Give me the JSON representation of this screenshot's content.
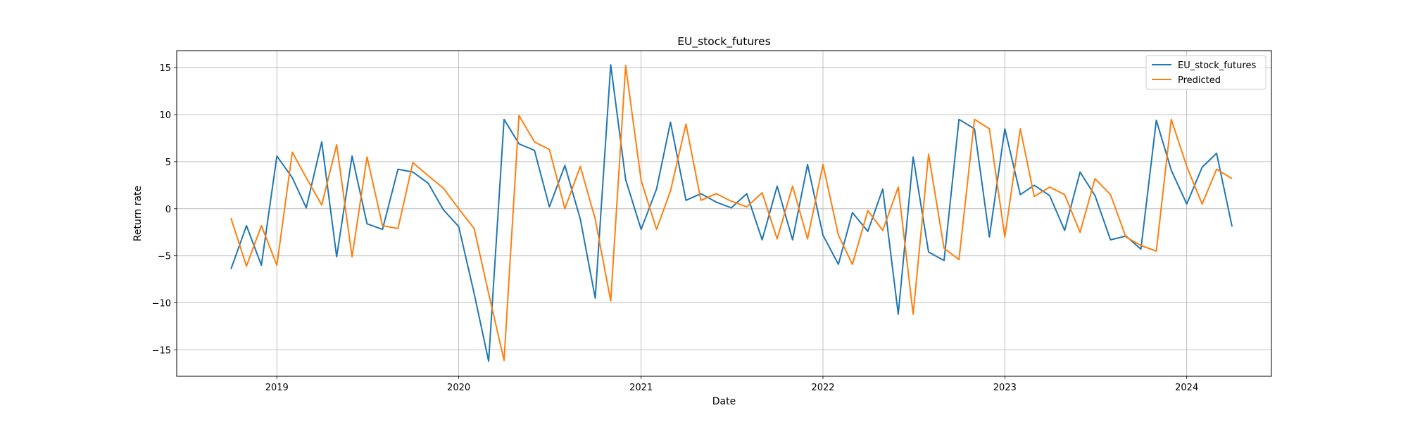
{
  "chart_data": {
    "type": "line",
    "title": "EU_stock_futures",
    "xlabel": "Date",
    "ylabel": "Return rate",
    "xlim": [
      "2018-06-14",
      "2024-06-19"
    ],
    "ylim": [
      -17.8,
      16.8
    ],
    "x_ticks": [
      "2019-01-01",
      "2020-01-01",
      "2021-01-01",
      "2022-01-01",
      "2023-01-01",
      "2024-01-01"
    ],
    "x_tick_labels": [
      "2019",
      "2020",
      "2021",
      "2022",
      "2023",
      "2024"
    ],
    "y_ticks": [
      -15,
      -10,
      -5,
      0,
      5,
      10,
      15
    ],
    "y_tick_labels": [
      "−15",
      "−10",
      "−5",
      "0",
      "5",
      "10",
      "15"
    ],
    "grid": true,
    "legend_position": "top-right",
    "x": [
      "2018-10-01",
      "2018-11-01",
      "2018-12-01",
      "2019-01-01",
      "2019-02-01",
      "2019-03-01",
      "2019-04-01",
      "2019-05-01",
      "2019-06-01",
      "2019-07-01",
      "2019-08-01",
      "2019-09-01",
      "2019-10-01",
      "2019-11-01",
      "2019-12-01",
      "2020-01-01",
      "2020-02-01",
      "2020-03-01",
      "2020-04-01",
      "2020-05-01",
      "2020-06-01",
      "2020-07-01",
      "2020-08-01",
      "2020-09-01",
      "2020-10-01",
      "2020-11-01",
      "2020-12-01",
      "2021-01-01",
      "2021-02-01",
      "2021-03-01",
      "2021-04-01",
      "2021-05-01",
      "2021-06-01",
      "2021-07-01",
      "2021-08-01",
      "2021-09-01",
      "2021-10-01",
      "2021-11-01",
      "2021-12-01",
      "2022-01-01",
      "2022-02-01",
      "2022-03-01",
      "2022-04-01",
      "2022-05-01",
      "2022-06-01",
      "2022-07-01",
      "2022-08-01",
      "2022-09-01",
      "2022-10-01",
      "2022-11-01",
      "2022-12-01",
      "2023-01-01",
      "2023-02-01",
      "2023-03-01",
      "2023-04-01",
      "2023-05-01",
      "2023-06-01",
      "2023-07-01",
      "2023-08-01",
      "2023-09-01",
      "2023-10-01",
      "2023-11-01",
      "2023-12-01",
      "2024-01-01",
      "2024-02-01",
      "2024-03-01",
      "2024-04-01"
    ],
    "series": [
      {
        "name": "EU_stock_futures",
        "color": "#1f77b4",
        "values": [
          -6.4,
          -1.8,
          -6.0,
          5.6,
          3.3,
          0.1,
          7.1,
          -5.1,
          5.6,
          -1.6,
          -2.2,
          4.2,
          3.9,
          2.7,
          -0.1,
          -1.9,
          -9.0,
          -16.2,
          9.5,
          6.9,
          6.2,
          0.2,
          4.6,
          -1.1,
          -9.5,
          15.3,
          3.1,
          -2.2,
          2.1,
          9.2,
          0.9,
          1.6,
          0.7,
          0.1,
          1.6,
          -3.3,
          2.4,
          -3.3,
          4.7,
          -2.8,
          -5.9,
          -0.4,
          -2.4,
          2.1,
          -11.2,
          5.5,
          -4.6,
          -5.5,
          9.5,
          8.5,
          -3.0,
          8.5,
          1.5,
          2.5,
          1.4,
          -2.3,
          3.9,
          1.4,
          -3.3,
          -2.9,
          -4.3,
          9.4,
          4.1,
          0.5,
          4.4,
          5.9,
          -1.9
        ]
      },
      {
        "name": "Predicted",
        "color": "#ff7f0e",
        "values": [
          -1.0,
          -6.1,
          -1.8,
          -6.0,
          6.0,
          3.3,
          0.4,
          6.8,
          -5.1,
          5.5,
          -1.8,
          -2.1,
          4.9,
          3.5,
          2.2,
          0.0,
          -2.1,
          -9.0,
          -16.1,
          9.9,
          7.1,
          6.3,
          0.0,
          4.5,
          -1.1,
          -9.8,
          15.2,
          3.0,
          -2.2,
          1.9,
          9.0,
          0.9,
          1.6,
          0.8,
          0.2,
          1.7,
          -3.2,
          2.4,
          -3.2,
          4.7,
          -2.8,
          -5.9,
          -0.2,
          -2.3,
          2.3,
          -11.2,
          5.8,
          -4.2,
          -5.4,
          9.5,
          8.5,
          -3.0,
          8.5,
          1.3,
          2.3,
          1.5,
          -2.5,
          3.2,
          1.5,
          -3.0,
          -3.9,
          -4.5,
          9.5,
          4.5,
          0.5,
          4.2,
          3.2
        ]
      }
    ]
  }
}
